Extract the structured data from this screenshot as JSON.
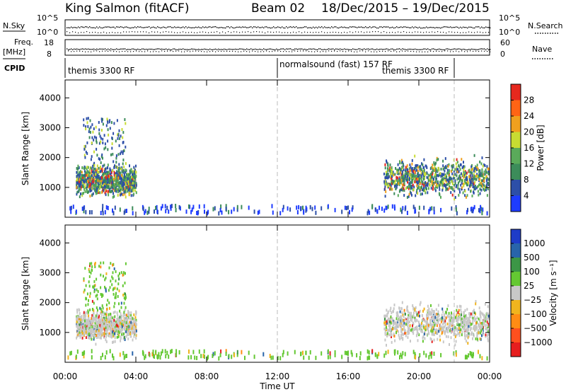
{
  "header": {
    "title": "King Salmon (fitACF)",
    "beam": "Beam 02",
    "dates": "18/Dec/2015 – 19/Dec/2015"
  },
  "top_panels": {
    "nsky_label": "N.Sky",
    "nsearch_label": "N.Search",
    "nsky_ticks": [
      "10^5",
      "10^0"
    ],
    "nsearch_ticks": [
      "10^5",
      "10^0"
    ],
    "freq_label_line1": "Freq.",
    "freq_label_line2": "[MHz]",
    "freq_ticks": [
      "18",
      "8"
    ],
    "nave_label": "Nave",
    "nave_ticks": [
      "60",
      "0"
    ],
    "cpid_label": "CPID",
    "cpid_segments": [
      {
        "label": "themis 3300 RF",
        "start_hour": 0,
        "end_hour": 12
      },
      {
        "label": "normalsound (fast) 157 RF",
        "start_hour": 12,
        "end_hour": 22
      },
      {
        "label": "themis 3300 RF",
        "start_hour": 22,
        "end_hour": 24
      }
    ]
  },
  "chart_data": [
    {
      "type": "heatmap",
      "name": "power",
      "ylabel": "Slant Range [km]",
      "xlabel": "Time UT",
      "x_ticks": [
        "00:00",
        "04:00",
        "08:00",
        "12:00",
        "16:00",
        "20:00",
        "00:00"
      ],
      "x_tick_hours": [
        0,
        4,
        8,
        12,
        16,
        20,
        24
      ],
      "xlim_hours": [
        0,
        24
      ],
      "ylim": [
        0,
        4600
      ],
      "y_ticks": [
        1000,
        2000,
        3000,
        4000
      ],
      "colorbar": {
        "label": "Power [dB]",
        "range": [
          0,
          32
        ],
        "tick_values": [
          4,
          8,
          12,
          16,
          20,
          24,
          28
        ],
        "tick_labels": [
          "4",
          "8",
          "12",
          "16",
          "20",
          "24",
          "28"
        ],
        "colors": [
          "#1e3cff",
          "#2d4fa8",
          "#3c8c5a",
          "#5aaa5a",
          "#c8dc32",
          "#f0a01e",
          "#ff6414",
          "#e6281e"
        ]
      },
      "scatter_regions": [
        {
          "hours": [
            0.6,
            4.0
          ],
          "range_km": [
            900,
            1600
          ],
          "note": "dense echoes"
        },
        {
          "hours": [
            1.0,
            3.4
          ],
          "range_km": [
            1600,
            3400
          ],
          "note": "sparse echoes"
        },
        {
          "hours": [
            18.0,
            24.0
          ],
          "range_km": [
            900,
            1800
          ],
          "note": "dense echoes"
        },
        {
          "hours": [
            0.0,
            24.0
          ],
          "range_km": [
            200,
            450
          ],
          "note": "near-range echoes"
        }
      ]
    },
    {
      "type": "heatmap",
      "name": "velocity",
      "ylabel": "Slant Range [km]",
      "xlabel": "Time UT",
      "x_ticks": [
        "00:00",
        "04:00",
        "08:00",
        "12:00",
        "16:00",
        "20:00",
        "00:00"
      ],
      "x_tick_hours": [
        0,
        4,
        8,
        12,
        16,
        20,
        24
      ],
      "xlim_hours": [
        0,
        24
      ],
      "ylim": [
        0,
        4600
      ],
      "y_ticks": [
        1000,
        2000,
        3000,
        4000
      ],
      "colorbar": {
        "label": "Velocity [m s⁻¹]",
        "tick_labels": [
          "1000",
          "500",
          "100",
          "25",
          "−25",
          "−100",
          "−500",
          "−1000"
        ],
        "colors": [
          "#1e3cc8",
          "#2864aa",
          "#3c9646",
          "#64c832",
          "#c8c8c8",
          "#f0b41e",
          "#ff8c14",
          "#ff501e",
          "#e61e1e"
        ]
      },
      "scatter_regions": [
        {
          "hours": [
            0.6,
            4.0
          ],
          "range_km": [
            900,
            1600
          ],
          "note": "mostly ground scatter (grey)"
        },
        {
          "hours": [
            1.0,
            3.4
          ],
          "range_km": [
            1600,
            3400
          ],
          "note": "sparse echoes"
        },
        {
          "hours": [
            18.0,
            24.0
          ],
          "range_km": [
            900,
            1800
          ],
          "note": "mostly ground scatter (grey)"
        },
        {
          "hours": [
            0.0,
            24.0
          ],
          "range_km": [
            200,
            450
          ],
          "note": "near-range echoes"
        }
      ]
    }
  ]
}
